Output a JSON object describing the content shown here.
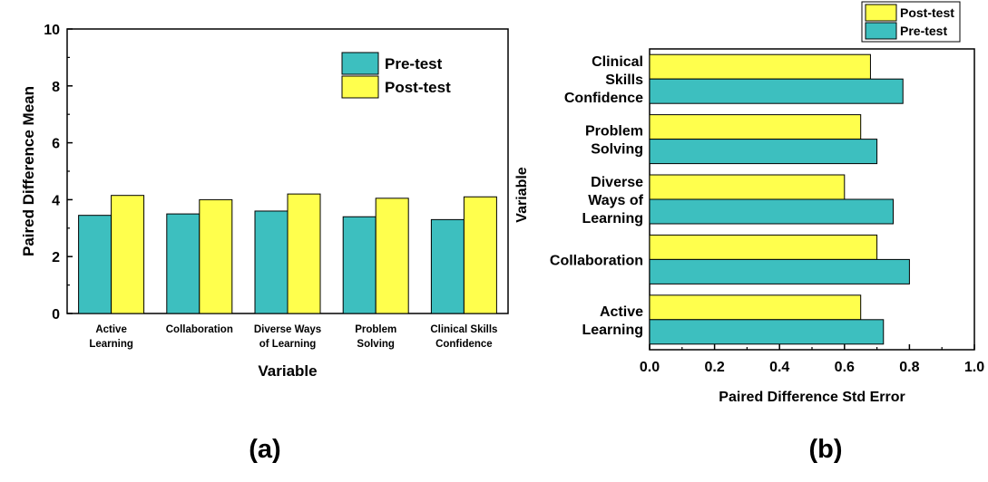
{
  "colors": {
    "pre_test": "#3dbfbf",
    "post_test": "#ffff4d",
    "stroke": "#000000"
  },
  "chart_data": [
    {
      "type": "bar",
      "panel_label": "(a)",
      "xlabel": "Variable",
      "ylabel": "Paired Difference Mean",
      "ylim": [
        0,
        10
      ],
      "yticks": [
        "0",
        "2",
        "4",
        "6",
        "8",
        "10"
      ],
      "categories": [
        [
          "Active",
          "Learning"
        ],
        [
          "Collaboration"
        ],
        [
          "Diverse Ways",
          "of Learning"
        ],
        [
          "Problem",
          "Solving"
        ],
        [
          "Clinical Skills",
          "Confidence"
        ]
      ],
      "legend_position": "top-right",
      "series": [
        {
          "name": "Pre-test",
          "color": "#3dbfbf",
          "values": [
            3.45,
            3.5,
            3.6,
            3.4,
            3.3
          ]
        },
        {
          "name": "Post-test",
          "color": "#ffff4d",
          "values": [
            4.15,
            4.0,
            4.2,
            4.05,
            4.1
          ]
        }
      ]
    },
    {
      "type": "bar",
      "orientation": "horizontal",
      "panel_label": "(b)",
      "xlabel": "Paired Difference Std Error",
      "ylabel": "Variable",
      "xlim": [
        0.0,
        1.0
      ],
      "xticks": [
        "0.0",
        "0.2",
        "0.4",
        "0.6",
        "0.8",
        "1.0"
      ],
      "categories": [
        [
          "Active",
          "Learning"
        ],
        [
          "Collaboration"
        ],
        [
          "Diverse",
          "Ways of",
          "Learning"
        ],
        [
          "Problem",
          "Solving"
        ],
        [
          "Clinical",
          "Skills",
          "Confidence"
        ]
      ],
      "legend_position": "top-right outside",
      "series": [
        {
          "name": "Post-test",
          "color": "#ffff4d",
          "values": [
            0.65,
            0.7,
            0.6,
            0.65,
            0.68
          ]
        },
        {
          "name": "Pre-test",
          "color": "#3dbfbf",
          "values": [
            0.72,
            0.8,
            0.75,
            0.7,
            0.78
          ]
        }
      ]
    }
  ]
}
